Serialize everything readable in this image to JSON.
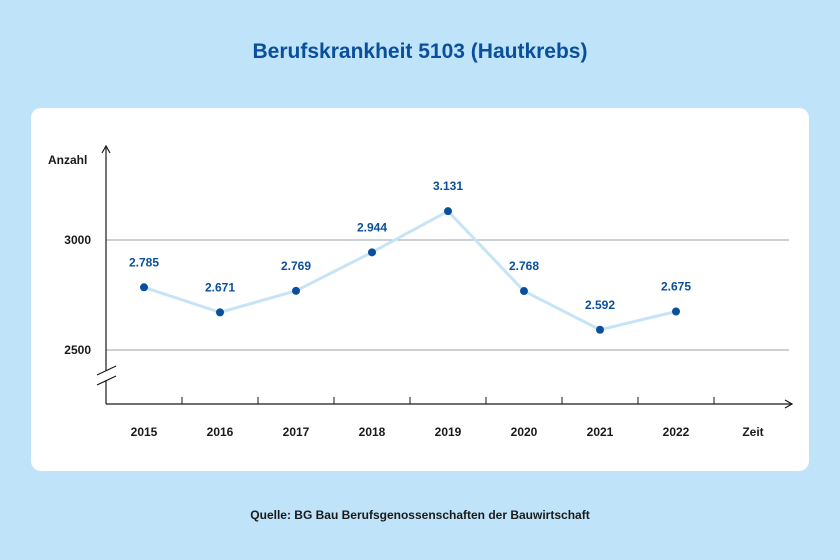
{
  "chart_data": {
    "type": "line",
    "title": "Berufskrankheit 5103 (Hautkrebs)",
    "ylabel": "Anzahl",
    "xlabel": "Zeit",
    "categories": [
      "2015",
      "2016",
      "2017",
      "2018",
      "2019",
      "2020",
      "2021",
      "2022"
    ],
    "series": [
      {
        "values": [
          2785,
          2671,
          2769,
          2944,
          3131,
          2768,
          2592,
          2675
        ]
      }
    ],
    "data_labels": [
      "2.785",
      "2.671",
      "2.769",
      "2.944",
      "3.131",
      "2.768",
      "2.592",
      "2.675"
    ],
    "yticks": [
      {
        "value": 3000,
        "label": "3000"
      },
      {
        "value": 2500,
        "label": "2500"
      }
    ],
    "y_axis_break": true,
    "grid": true,
    "line_color": "#c6e4f6",
    "marker_color": "#0a4f9c",
    "label_color": "#0a4f9c"
  },
  "source": "Quelle: BG Bau Berufsgenossenschaften der Bauwirtschaft"
}
